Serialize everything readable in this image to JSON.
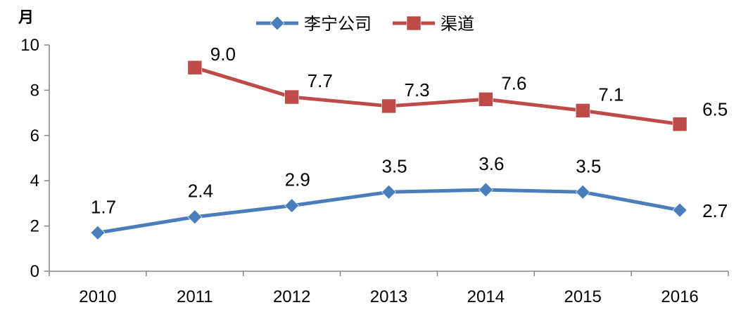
{
  "chart_data": {
    "type": "line",
    "ylabel": "月",
    "ylim": [
      0,
      10
    ],
    "yticks": [
      0,
      2,
      4,
      6,
      8,
      10
    ],
    "categories": [
      "2010",
      "2011",
      "2012",
      "2013",
      "2014",
      "2015",
      "2016"
    ],
    "grid": false,
    "legend_position": "top-center",
    "series": [
      {
        "name": "李宁公司",
        "color": "#4a7ebb",
        "marker": "diamond",
        "values": [
          1.7,
          2.4,
          2.9,
          3.5,
          3.6,
          3.5,
          2.7
        ],
        "labels": [
          "1.7",
          "2.4",
          "2.9",
          "3.5",
          "3.6",
          "3.5",
          "2.7"
        ]
      },
      {
        "name": "渠道",
        "color": "#be4b48",
        "marker": "square",
        "values": [
          null,
          9.0,
          7.7,
          7.3,
          7.6,
          7.1,
          6.5
        ],
        "labels": [
          null,
          "9.0",
          "7.7",
          "7.3",
          "7.6",
          "7.1",
          "6.5"
        ]
      }
    ]
  }
}
